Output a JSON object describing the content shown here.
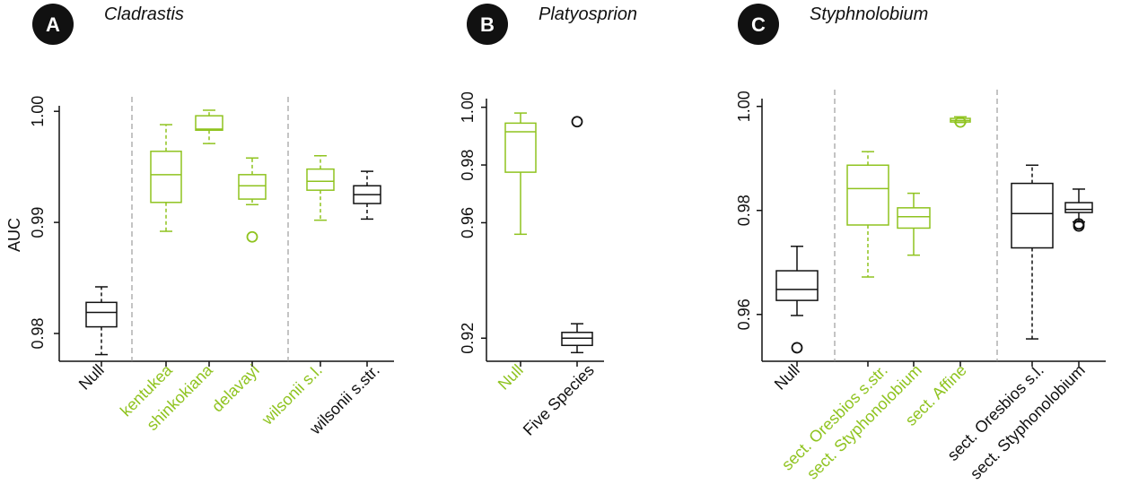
{
  "colors": {
    "green": "#8fc31f",
    "black": "#111111"
  },
  "chart_data": [
    {
      "type": "box",
      "panel": "A",
      "title": "Cladrastis",
      "ylabel": "AUC",
      "ylim": [
        0.9775,
        1.0005
      ],
      "yticks": [
        0.98,
        0.99,
        1.0
      ],
      "ytick_labels": [
        "0.98",
        "0.99",
        "1.00"
      ],
      "categories": [
        "Null",
        "kentukea",
        "shinkokiana",
        "delavayi",
        "wilsonii s.l.",
        "wilsonii s.str."
      ],
      "category_colors": [
        "black",
        "green",
        "green",
        "green",
        "green",
        "black"
      ],
      "separators_after": [
        0,
        3
      ],
      "boxes": [
        {
          "whislo": 0.9781,
          "q1": 0.9806,
          "med": 0.9819,
          "q3": 0.9828,
          "whishi": 0.9842,
          "fliers": [],
          "whisker_style": "dashed"
        },
        {
          "whislo": 0.9892,
          "q1": 0.9918,
          "med": 0.9943,
          "q3": 0.9964,
          "whishi": 0.9988,
          "fliers": [],
          "whisker_style": "dashed"
        },
        {
          "whislo": 0.9971,
          "q1": 0.9983,
          "med": 0.9984,
          "q3": 0.9996,
          "whishi": 1.0001,
          "fliers": [],
          "whisker_style": "dashed"
        },
        {
          "whislo": 0.9916,
          "q1": 0.9921,
          "med": 0.9933,
          "q3": 0.9943,
          "whishi": 0.9958,
          "fliers": [
            0.9887
          ],
          "whisker_style": "dashed"
        },
        {
          "whislo": 0.9902,
          "q1": 0.9929,
          "med": 0.9937,
          "q3": 0.9948,
          "whishi": 0.996,
          "fliers": [],
          "whisker_style": "dashed"
        },
        {
          "whislo": 0.9903,
          "q1": 0.9917,
          "med": 0.9925,
          "q3": 0.9933,
          "whishi": 0.9946,
          "fliers": [],
          "whisker_style": "dashed"
        }
      ]
    },
    {
      "type": "box",
      "panel": "B",
      "title": "Platyosprion",
      "ylabel": "",
      "ylim": [
        0.912,
        1.003
      ],
      "yticks": [
        0.92,
        0.96,
        0.98,
        1.0
      ],
      "ytick_labels": [
        "0.92",
        "0.96",
        "0.98",
        "1.00"
      ],
      "categories": [
        "Null",
        "Five Species"
      ],
      "category_colors": [
        "green",
        "black"
      ],
      "separators_after": [],
      "boxes": [
        {
          "whislo": 0.956,
          "q1": 0.9775,
          "med": 0.9915,
          "q3": 0.9945,
          "whishi": 0.998,
          "fliers": [],
          "whisker_style": "solid"
        },
        {
          "whislo": 0.915,
          "q1": 0.9175,
          "med": 0.92,
          "q3": 0.922,
          "whishi": 0.925,
          "fliers": [
            0.995
          ],
          "whisker_style": "solid"
        }
      ]
    },
    {
      "type": "box",
      "panel": "C",
      "title": "Styphnolobium",
      "ylabel": "",
      "ylim": [
        0.951,
        1.0015
      ],
      "yticks": [
        0.96,
        0.98,
        1.0
      ],
      "ytick_labels": [
        "0.96",
        "0.98",
        "1.00"
      ],
      "categories": [
        "Null",
        "sect. Oresbios s.str.",
        "sect. Styphonolobium",
        "sect. Affine",
        "sect. Oresbios s.l.",
        "sect. Styphonolobium"
      ],
      "category_colors": [
        "black",
        "green",
        "green",
        "green",
        "black",
        "black"
      ],
      "separators_after": [
        0,
        3
      ],
      "boxes": [
        {
          "whislo": 0.9598,
          "q1": 0.9627,
          "med": 0.9648,
          "q3": 0.9684,
          "whishi": 0.9731,
          "fliers": [
            0.9536
          ],
          "whisker_style": "solid"
        },
        {
          "whislo": 0.9672,
          "q1": 0.9772,
          "med": 0.9842,
          "q3": 0.9887,
          "whishi": 0.9913,
          "fliers": [],
          "whisker_style": "dashed"
        },
        {
          "whislo": 0.9714,
          "q1": 0.9766,
          "med": 0.9788,
          "q3": 0.9805,
          "whishi": 0.9833,
          "fliers": [],
          "whisker_style": "solid"
        },
        {
          "whislo": 0.9969,
          "q1": 0.997,
          "med": 0.9973,
          "q3": 0.9977,
          "whishi": 0.998,
          "fliers": [
            0.997
          ],
          "whisker_style": "solid"
        },
        {
          "whislo": 0.9553,
          "q1": 0.9728,
          "med": 0.9794,
          "q3": 0.9852,
          "whishi": 0.9887,
          "fliers": [],
          "whisker_style": "dashed"
        },
        {
          "whislo": 0.9778,
          "q1": 0.9796,
          "med": 0.9802,
          "q3": 0.9815,
          "whishi": 0.9841,
          "fliers": [
            0.977,
            0.9774
          ],
          "whisker_style": "solid"
        }
      ]
    }
  ]
}
